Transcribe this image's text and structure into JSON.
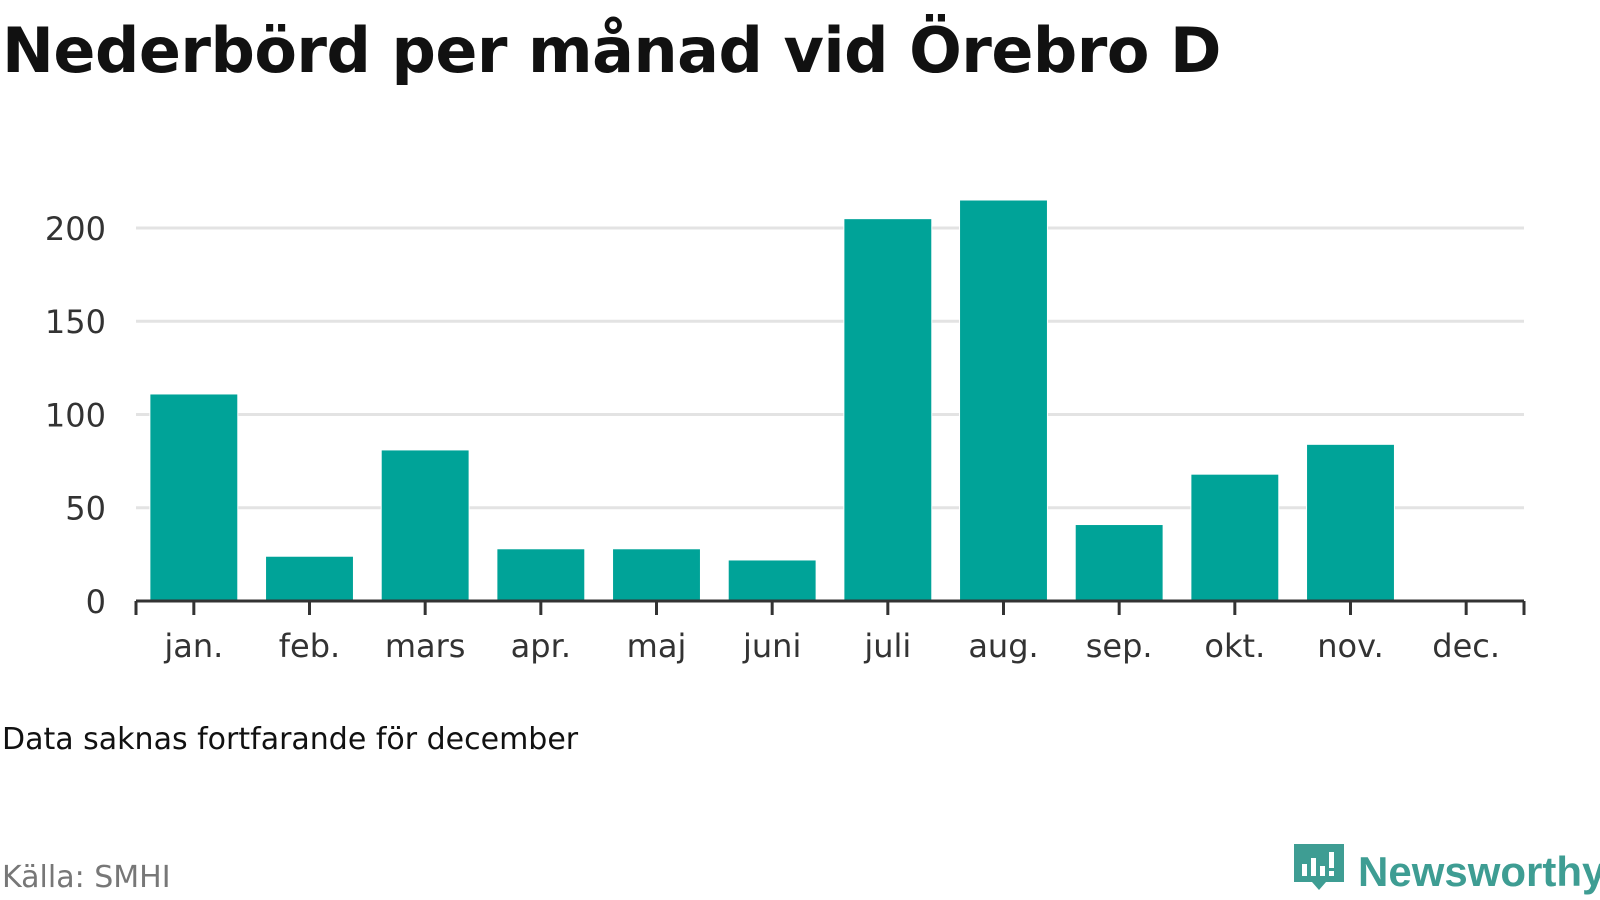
{
  "header": {
    "title": "Nederbörd per månad vid Örebro D"
  },
  "footer": {
    "note": "Data saknas fortfarande för december",
    "source": "Källa: SMHI",
    "brand": "Newsworthy"
  },
  "colors": {
    "bar": "#00a398",
    "grid": "#e3e3e3",
    "axis": "#333333",
    "brand": "#3e9d93"
  },
  "chart_data": {
    "type": "bar",
    "title": "Nederbörd per månad vid Örebro D",
    "xlabel": "",
    "ylabel": "",
    "categories": [
      "jan.",
      "feb.",
      "mars",
      "apr.",
      "maj",
      "juni",
      "juli",
      "aug.",
      "sep.",
      "okt.",
      "nov.",
      "dec."
    ],
    "values": [
      111,
      24,
      81,
      28,
      28,
      22,
      205,
      215,
      41,
      68,
      84,
      null
    ],
    "ylim": [
      0,
      215
    ],
    "yticks": [
      0,
      50,
      100,
      150,
      200
    ],
    "grid": true,
    "legend": false
  }
}
